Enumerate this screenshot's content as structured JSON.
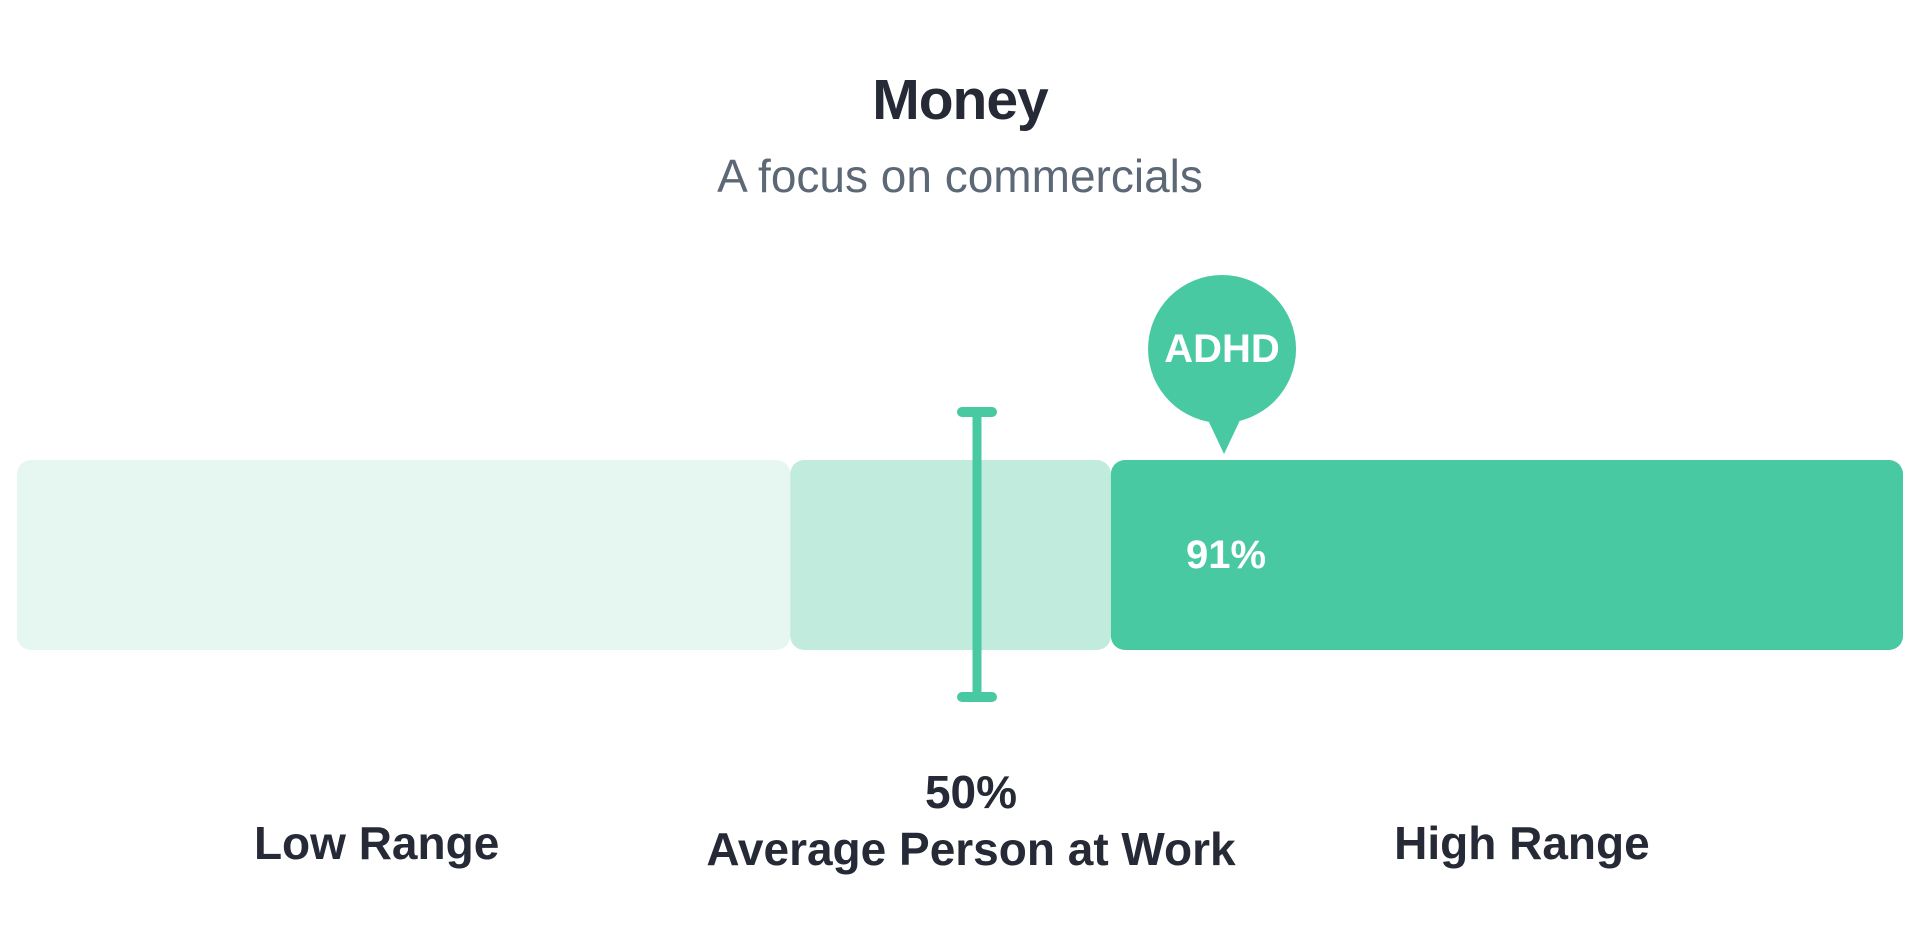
{
  "title": "Money",
  "subtitle": "A focus on commercials",
  "chart_data": {
    "type": "bar",
    "xlim": [
      0,
      100
    ],
    "bands": [
      {
        "name": "Low Range",
        "start": 0,
        "end": 41
      },
      {
        "name": "Average",
        "start": 41,
        "end": 58
      },
      {
        "name": "High Range",
        "start": 58,
        "end": 100
      }
    ],
    "average": {
      "value": 50,
      "label": "50%",
      "caption": "Average Person at Work"
    },
    "marker": {
      "value": 91,
      "label": "91%",
      "name": "ADHD",
      "pin_position": 64
    },
    "range_labels": {
      "low": "Low Range",
      "high": "High Range"
    },
    "colors": {
      "low_band": "#e6f6f0",
      "mid_band": "#c1ebdc",
      "high_band": "#48c9a1",
      "accent": "#48c9a1",
      "text_dark": "#262a36",
      "text_muted": "#5d6877",
      "text_on_accent": "#ffffff"
    }
  }
}
